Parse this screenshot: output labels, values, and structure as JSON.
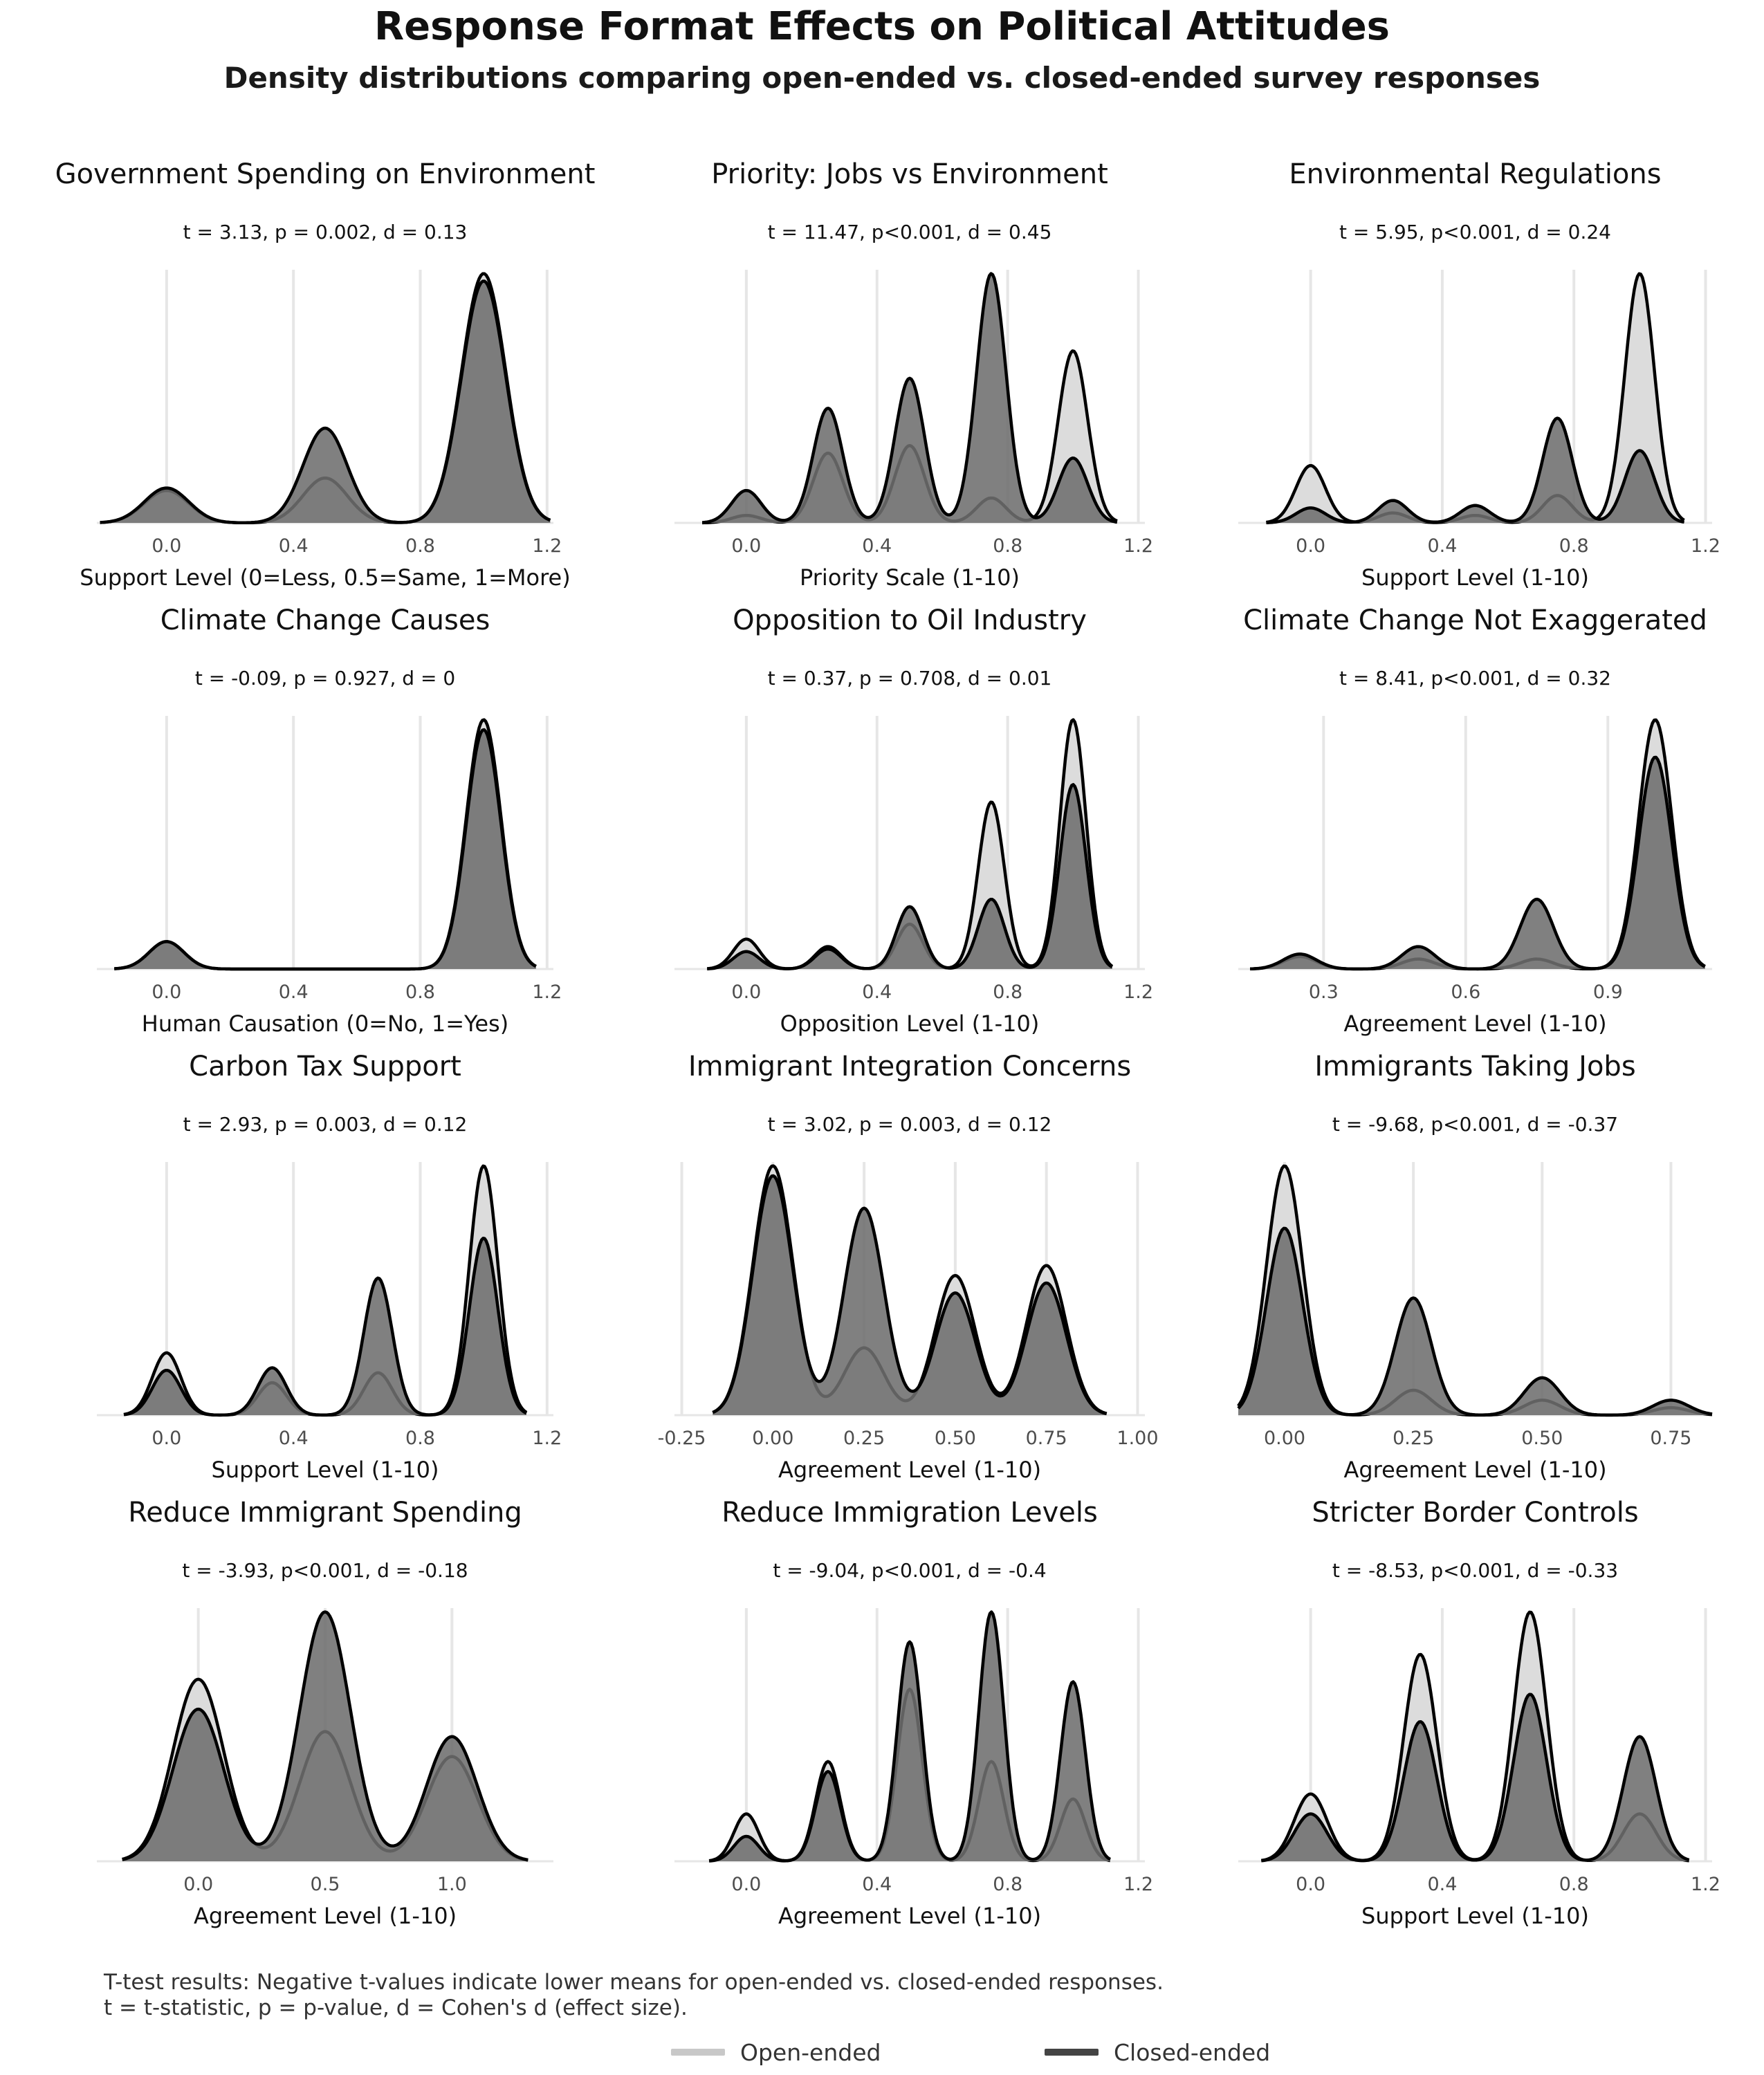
{
  "title": "Response Format Effects on Political Attitudes",
  "subtitle": "Density distributions comparing open-ended vs. closed-ended survey responses",
  "caption": [
    "T-test results: Negative t-values indicate lower means for open-ended vs. closed-ended responses.",
    "t = t-statistic, p = p-value, d = Cohen's d (effect size)."
  ],
  "legend": [
    {
      "label": "Open-ended",
      "color": "#c8c8c8"
    },
    {
      "label": "Closed-ended",
      "color": "#444444"
    }
  ],
  "colors": {
    "open_fill": "#dcdcdc",
    "closed_fill": "#6e6e6e",
    "outline": "#000000",
    "grid": "#e6e6e6"
  },
  "chart_data": [
    {
      "type": "area",
      "title": "Government Spending on Environment",
      "annotation": "t = 3.13, p = 0.002, d = 0.13",
      "xlabel": "Support Level (0=Less, 0.5=Same, 1=More)",
      "xlim": [
        -0.22,
        1.22
      ],
      "xticks": [
        0.0,
        0.4,
        0.8,
        1.2
      ],
      "tick_labels": [
        "0.0",
        "0.4",
        "0.8",
        "1.2"
      ],
      "bw": 0.07,
      "series": [
        {
          "name": "Open-ended",
          "peaks": [
            [
              0,
              0.13
            ],
            [
              0.5,
              0.18
            ],
            [
              1,
              1.0
            ]
          ]
        },
        {
          "name": "Closed-ended",
          "peaks": [
            [
              0,
              0.14
            ],
            [
              0.5,
              0.38
            ],
            [
              1,
              0.97
            ]
          ]
        }
      ]
    },
    {
      "type": "area",
      "title": "Priority: Jobs vs Environment",
      "annotation": "t = 11.47, p<0.001, d = 0.45",
      "xlabel": "Priority Scale (1-10)",
      "xlim": [
        -0.22,
        1.22
      ],
      "xticks": [
        0.0,
        0.4,
        0.8,
        1.2
      ],
      "tick_labels": [
        "0.0",
        "0.4",
        "0.8",
        "1.2"
      ],
      "bw": 0.045,
      "series": [
        {
          "name": "Open-ended",
          "peaks": [
            [
              0,
              0.03
            ],
            [
              0.25,
              0.28
            ],
            [
              0.5,
              0.31
            ],
            [
              0.75,
              0.1
            ],
            [
              1,
              0.69
            ]
          ]
        },
        {
          "name": "Closed-ended",
          "peaks": [
            [
              0,
              0.13
            ],
            [
              0.25,
              0.46
            ],
            [
              0.5,
              0.58
            ],
            [
              0.75,
              1.0
            ],
            [
              1,
              0.26
            ]
          ]
        }
      ]
    },
    {
      "type": "area",
      "title": "Environmental Regulations",
      "annotation": "t = 5.95, p<0.001, d = 0.24",
      "xlabel": "Support Level (1-10)",
      "xlim": [
        -0.22,
        1.22
      ],
      "xticks": [
        0.0,
        0.4,
        0.8,
        1.2
      ],
      "tick_labels": [
        "0.0",
        "0.4",
        "0.8",
        "1.2"
      ],
      "bw": 0.045,
      "series": [
        {
          "name": "Open-ended",
          "peaks": [
            [
              0,
              0.23
            ],
            [
              0.25,
              0.04
            ],
            [
              0.5,
              0.03
            ],
            [
              0.75,
              0.11
            ],
            [
              1,
              1.0
            ]
          ]
        },
        {
          "name": "Closed-ended",
          "peaks": [
            [
              0,
              0.06
            ],
            [
              0.25,
              0.09
            ],
            [
              0.5,
              0.07
            ],
            [
              0.75,
              0.42
            ],
            [
              1,
              0.29
            ]
          ]
        }
      ]
    },
    {
      "type": "area",
      "title": "Climate Change Causes",
      "annotation": "t = -0.09, p = 0.927, d = 0",
      "xlabel": "Human Causation (0=No, 1=Yes)",
      "xlim": [
        -0.22,
        1.22
      ],
      "xticks": [
        0.0,
        0.4,
        0.8,
        1.2
      ],
      "tick_labels": [
        "0.0",
        "0.4",
        "0.8",
        "1.2"
      ],
      "bw": 0.055,
      "series": [
        {
          "name": "Open-ended",
          "peaks": [
            [
              0,
              0.11
            ],
            [
              1,
              1.0
            ]
          ]
        },
        {
          "name": "Closed-ended",
          "peaks": [
            [
              0,
              0.11
            ],
            [
              1,
              0.96
            ]
          ]
        }
      ]
    },
    {
      "type": "area",
      "title": "Opposition to Oil Industry",
      "annotation": "t = 0.37, p = 0.708, d = 0.01",
      "xlabel": "Opposition Level (1-10)",
      "xlim": [
        -0.22,
        1.22
      ],
      "xticks": [
        0.0,
        0.4,
        0.8,
        1.2
      ],
      "tick_labels": [
        "0.0",
        "0.4",
        "0.8",
        "1.2"
      ],
      "bw": 0.04,
      "series": [
        {
          "name": "Open-ended",
          "peaks": [
            [
              0,
              0.12
            ],
            [
              0.25,
              0.09
            ],
            [
              0.5,
              0.18
            ],
            [
              0.75,
              0.67
            ],
            [
              1,
              1.0
            ]
          ]
        },
        {
          "name": "Closed-ended",
          "peaks": [
            [
              0,
              0.07
            ],
            [
              0.25,
              0.08
            ],
            [
              0.5,
              0.25
            ],
            [
              0.75,
              0.28
            ],
            [
              1,
              0.74
            ]
          ]
        }
      ]
    },
    {
      "type": "area",
      "title": "Climate Change Not Exaggerated",
      "annotation": "t = 8.41, p<0.001, d = 0.32",
      "xlabel": "Agreement Level (1-10)",
      "xlim": [
        0.12,
        1.12
      ],
      "xticks": [
        0.3,
        0.6,
        0.9
      ],
      "tick_labels": [
        "0.3",
        "0.6",
        "0.9"
      ],
      "bw": 0.035,
      "series": [
        {
          "name": "Open-ended",
          "peaks": [
            [
              0.25,
              0.05
            ],
            [
              0.5,
              0.04
            ],
            [
              0.75,
              0.04
            ],
            [
              1,
              1.0
            ]
          ]
        },
        {
          "name": "Closed-ended",
          "peaks": [
            [
              0.25,
              0.06
            ],
            [
              0.5,
              0.09
            ],
            [
              0.75,
              0.28
            ],
            [
              1,
              0.85
            ]
          ]
        }
      ]
    },
    {
      "type": "area",
      "title": "Carbon Tax Support",
      "annotation": "t = 2.93, p = 0.003, d = 0.12",
      "xlabel": "Support Level (1-10)",
      "xlim": [
        -0.22,
        1.22
      ],
      "xticks": [
        0.0,
        0.4,
        0.8,
        1.2
      ],
      "tick_labels": [
        "0.0",
        "0.4",
        "0.8",
        "1.2"
      ],
      "bw": 0.045,
      "series": [
        {
          "name": "Open-ended",
          "peaks": [
            [
              0,
              0.25
            ],
            [
              0.333,
              0.13
            ],
            [
              0.667,
              0.17
            ],
            [
              1,
              1.0
            ]
          ]
        },
        {
          "name": "Closed-ended",
          "peaks": [
            [
              0,
              0.18
            ],
            [
              0.333,
              0.19
            ],
            [
              0.667,
              0.55
            ],
            [
              1,
              0.71
            ]
          ]
        }
      ]
    },
    {
      "type": "area",
      "title": "Immigrant Integration Concerns",
      "annotation": "t = 3.02, p = 0.003, d = 0.12",
      "xlabel": "Agreement Level (1-10)",
      "xlim": [
        -0.27,
        1.02
      ],
      "xticks": [
        -0.25,
        0.0,
        0.25,
        0.5,
        0.75,
        1.0
      ],
      "tick_labels": [
        "-0.25",
        "0.00",
        "0.25",
        "0.50",
        "0.75",
        "1.00"
      ],
      "bw": 0.055,
      "series": [
        {
          "name": "Open-ended",
          "peaks": [
            [
              0,
              1.0
            ],
            [
              0.25,
              0.27
            ],
            [
              0.5,
              0.56
            ],
            [
              0.75,
              0.6
            ]
          ]
        },
        {
          "name": "Closed-ended",
          "peaks": [
            [
              0,
              0.96
            ],
            [
              0.25,
              0.83
            ],
            [
              0.5,
              0.49
            ],
            [
              0.75,
              0.53
            ]
          ]
        }
      ]
    },
    {
      "type": "area",
      "title": "Immigrants Taking Jobs",
      "annotation": "t = -9.68, p<0.001, d = -0.37",
      "xlabel": "Agreement Level (1-10)",
      "xlim": [
        -0.09,
        0.83
      ],
      "xticks": [
        0.0,
        0.25,
        0.5,
        0.75
      ],
      "tick_labels": [
        "0.00",
        "0.25",
        "0.50",
        "0.75"
      ],
      "bw": 0.035,
      "series": [
        {
          "name": "Open-ended",
          "peaks": [
            [
              0,
              1.0
            ],
            [
              0.25,
              0.1
            ],
            [
              0.5,
              0.06
            ],
            [
              0.75,
              0.03
            ]
          ]
        },
        {
          "name": "Closed-ended",
          "peaks": [
            [
              0,
              0.75
            ],
            [
              0.25,
              0.47
            ],
            [
              0.5,
              0.15
            ],
            [
              0.75,
              0.06
            ]
          ]
        }
      ]
    },
    {
      "type": "area",
      "title": "Reduce Immigrant Spending",
      "annotation": "t = -3.93, p<0.001, d = -0.18",
      "xlabel": "Agreement Level (1-10)",
      "xlim": [
        -0.4,
        1.4
      ],
      "xticks": [
        0.0,
        0.5,
        1.0
      ],
      "tick_labels": [
        "0.0",
        "0.5",
        "1.0"
      ],
      "bw": 0.1,
      "series": [
        {
          "name": "Open-ended",
          "peaks": [
            [
              0,
              0.73
            ],
            [
              0.5,
              0.52
            ],
            [
              1,
              0.42
            ]
          ]
        },
        {
          "name": "Closed-ended",
          "peaks": [
            [
              0,
              0.61
            ],
            [
              0.5,
              1.0
            ],
            [
              1,
              0.5
            ]
          ]
        }
      ]
    },
    {
      "type": "area",
      "title": "Reduce Immigration Levels",
      "annotation": "t = -9.04, p<0.001, d = -0.4",
      "xlabel": "Agreement Level (1-10)",
      "xlim": [
        -0.22,
        1.22
      ],
      "xticks": [
        0.0,
        0.4,
        0.8,
        1.2
      ],
      "tick_labels": [
        "0.0",
        "0.4",
        "0.8",
        "1.2"
      ],
      "bw": 0.038,
      "series": [
        {
          "name": "Open-ended",
          "peaks": [
            [
              0,
              0.19
            ],
            [
              0.25,
              0.4
            ],
            [
              0.5,
              0.69
            ],
            [
              0.75,
              0.4
            ],
            [
              1,
              0.25
            ]
          ]
        },
        {
          "name": "Closed-ended",
          "peaks": [
            [
              0,
              0.1
            ],
            [
              0.25,
              0.36
            ],
            [
              0.5,
              0.88
            ],
            [
              0.75,
              1.0
            ],
            [
              1,
              0.72
            ]
          ]
        }
      ]
    },
    {
      "type": "area",
      "title": "Stricter Border Controls",
      "annotation": "t = -8.53, p<0.001, d = -0.33",
      "xlabel": "Support Level (1-10)",
      "xlim": [
        -0.22,
        1.22
      ],
      "xticks": [
        0.0,
        0.4,
        0.8,
        1.2
      ],
      "tick_labels": [
        "0.0",
        "0.4",
        "0.8",
        "1.2"
      ],
      "bw": 0.05,
      "series": [
        {
          "name": "Open-ended",
          "peaks": [
            [
              0,
              0.27
            ],
            [
              0.333,
              0.83
            ],
            [
              0.667,
              1.0
            ],
            [
              1,
              0.19
            ]
          ]
        },
        {
          "name": "Closed-ended",
          "peaks": [
            [
              0,
              0.19
            ],
            [
              0.333,
              0.56
            ],
            [
              0.667,
              0.67
            ],
            [
              1,
              0.5
            ]
          ]
        }
      ]
    }
  ]
}
